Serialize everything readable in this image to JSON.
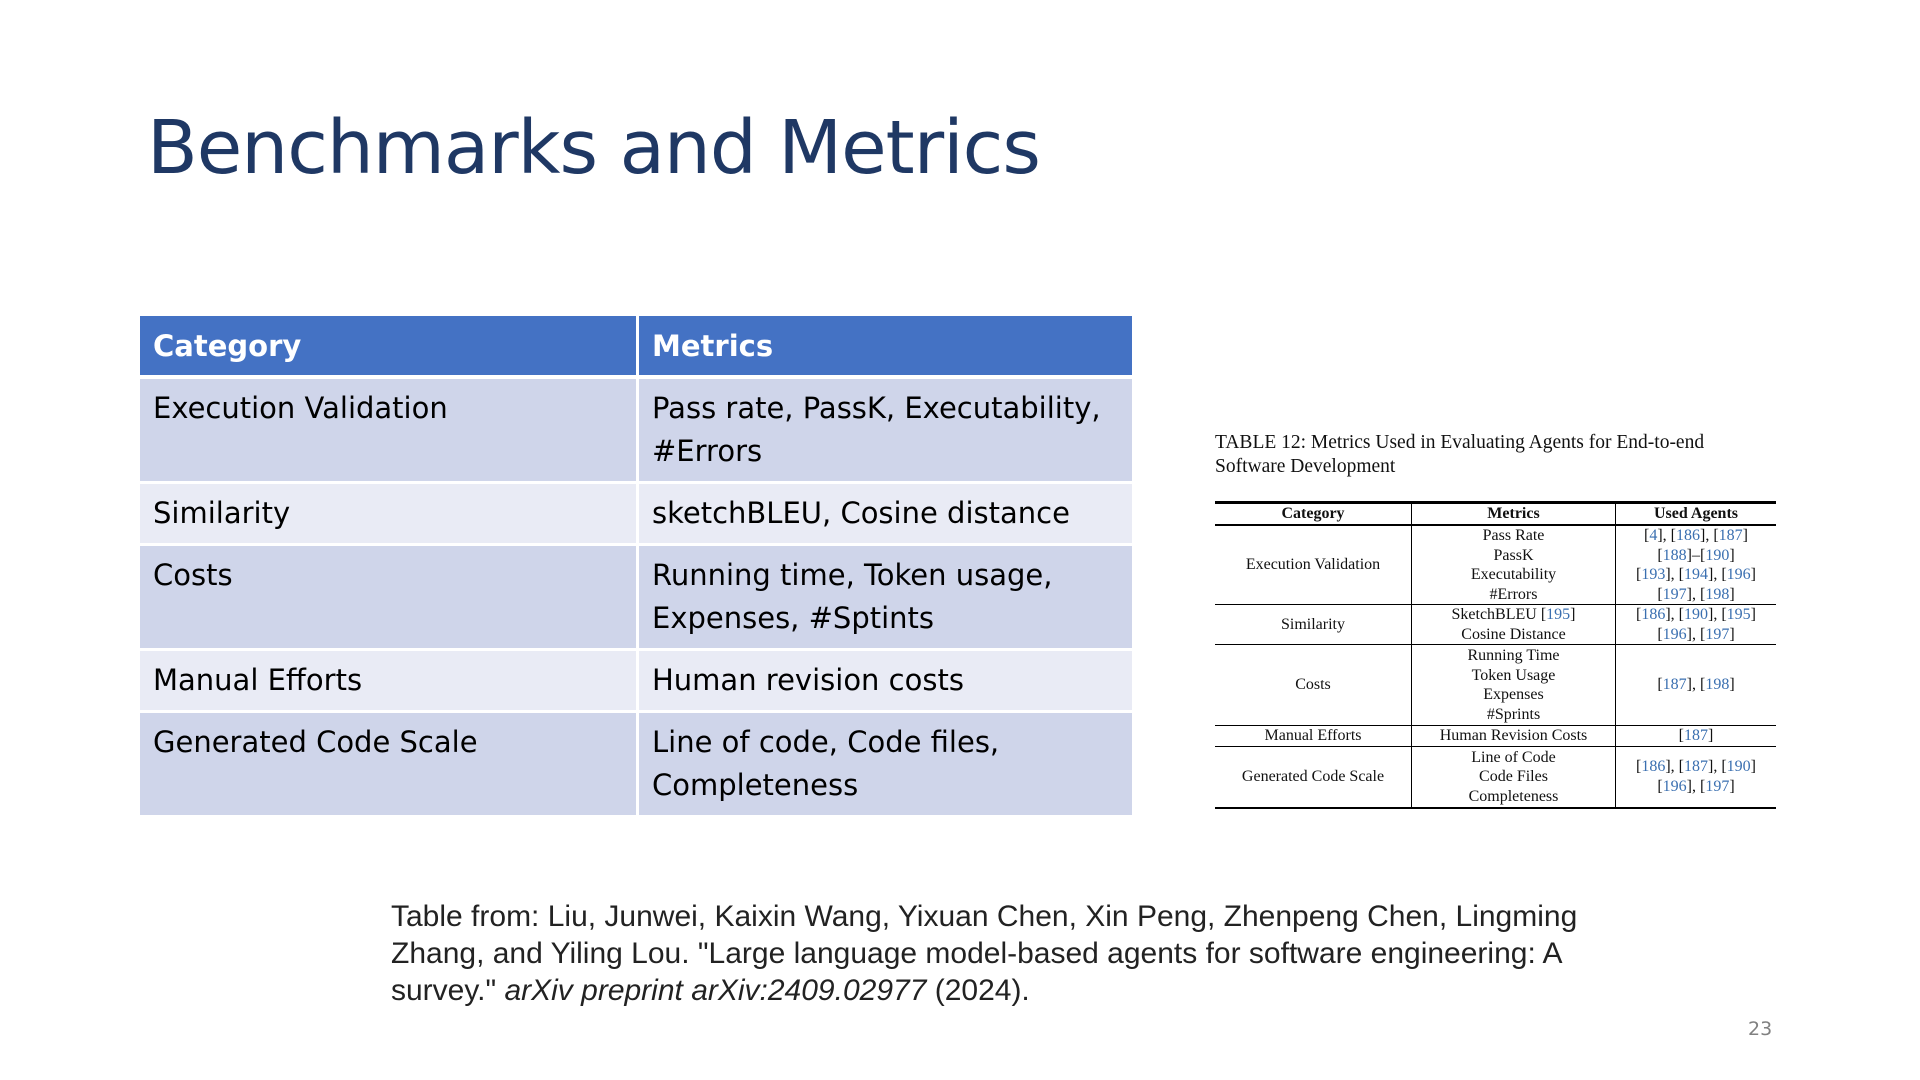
{
  "slide": {
    "title": "Benchmarks and Metrics",
    "page_number": "23"
  },
  "summary_table": {
    "headers": [
      "Category",
      "Metrics"
    ],
    "rows": [
      {
        "category": "Execution Validation",
        "metrics": "Pass rate, PassK, Executability, #Errors"
      },
      {
        "category": "Similarity",
        "metrics": "sketchBLEU, Cosine distance"
      },
      {
        "category": "Costs",
        "metrics": "Running time, Token usage, Expenses, #Sptints"
      },
      {
        "category": "Manual Efforts",
        "metrics": "Human revision costs"
      },
      {
        "category": "Generated Code Scale",
        "metrics": "Line of code, Code files, Completeness"
      }
    ]
  },
  "source_table": {
    "caption": "TABLE 12: Metrics Used in Evaluating Agents for End-to-end Software Development",
    "headers": [
      "Category",
      "Metrics",
      "Used Agents"
    ],
    "rows": [
      {
        "category": "Execution Validation",
        "metrics": [
          "Pass Rate",
          "PassK",
          "Executability",
          "#Errors"
        ],
        "agents": [
          "[4], [186], [187]",
          "[188]–[190]",
          "[193], [194], [196]",
          "[197], [198]"
        ]
      },
      {
        "category": "Similarity",
        "metrics": [
          "SketchBLEU [195]",
          "Cosine Distance"
        ],
        "agents": [
          "[186], [190], [195]",
          "[196], [197]"
        ]
      },
      {
        "category": "Costs",
        "metrics": [
          "Running Time",
          "Token Usage",
          "Expenses",
          "#Sprints"
        ],
        "agents": [
          "[187], [198]"
        ]
      },
      {
        "category": "Manual Efforts",
        "metrics": [
          "Human Revision Costs"
        ],
        "agents": [
          "[187]"
        ]
      },
      {
        "category": "Generated Code Scale",
        "metrics": [
          "Line of Code",
          "Code Files",
          "Completeness"
        ],
        "agents": [
          "[186], [187], [190]",
          "[196], [197]"
        ]
      }
    ],
    "ref_color": "#3a6fb0"
  },
  "citation": {
    "prefix": "Table from: Liu, Junwei, Kaixin Wang, Yixuan Chen, Xin Peng, Zhenpeng Chen, Lingming Zhang, and Yiling Lou. \"Large language model-based agents for software engineering: A survey.\" ",
    "journal": "arXiv preprint arXiv:2409.02977",
    "suffix": " (2024)."
  }
}
